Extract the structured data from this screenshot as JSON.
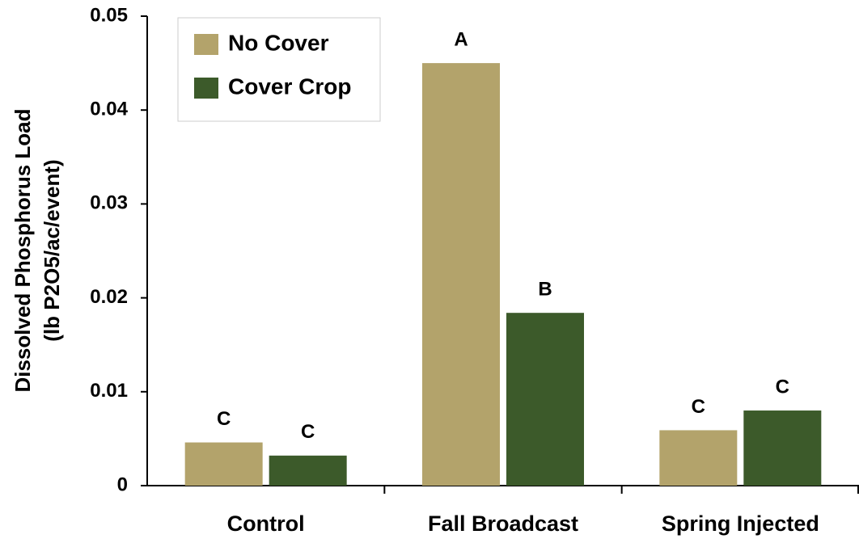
{
  "chart_data": {
    "type": "bar",
    "ylabel": [
      "Dissolved Phosphorus Load",
      "(lb P2O5/ac/event)"
    ],
    "categories": [
      "Control",
      "Fall Broadcast",
      "Spring Injected"
    ],
    "series": [
      {
        "name": "No Cover",
        "color": "#b3a36b",
        "values": [
          0.0046,
          0.045,
          0.0059
        ],
        "annotations": [
          "C",
          "A",
          "C"
        ]
      },
      {
        "name": "Cover Crop",
        "color": "#3c5a2a",
        "values": [
          0.0032,
          0.0184,
          0.008
        ],
        "annotations": [
          "C",
          "B",
          "C"
        ]
      }
    ],
    "ylim": [
      0,
      0.05
    ],
    "yticks": [
      0,
      0.01,
      0.02,
      0.03,
      0.04,
      0.05
    ],
    "legend": "upper left"
  }
}
